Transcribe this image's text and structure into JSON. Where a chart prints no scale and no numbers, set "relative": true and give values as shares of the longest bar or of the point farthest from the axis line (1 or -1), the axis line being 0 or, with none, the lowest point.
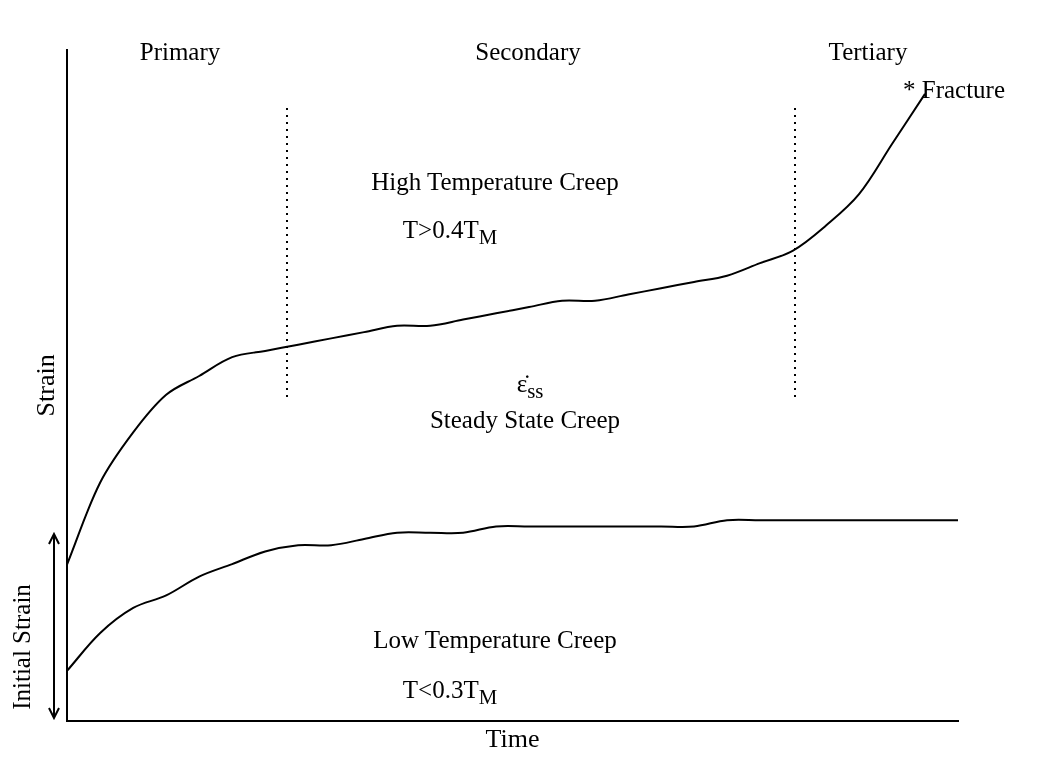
{
  "chart_data": {
    "type": "line",
    "relative": true,
    "xlabel": "Time",
    "ylabel": "Strain",
    "categories": [
      null,
      null,
      null,
      null,
      null,
      null,
      null,
      null,
      null,
      null,
      null,
      null,
      null,
      null,
      null,
      null,
      null,
      null,
      null,
      null,
      null,
      null,
      null,
      null,
      null,
      null,
      null,
      null
    ],
    "series": [
      {
        "color": "#000000",
        "values": [
          0.25,
          0.38,
          0.46,
          0.52,
          0.55,
          0.58,
          0.59,
          0.6,
          0.61,
          0.62,
          0.63,
          0.63,
          0.64,
          0.65,
          0.66,
          0.67,
          0.67,
          0.68,
          0.69,
          0.7,
          0.71,
          0.73,
          0.75,
          0.79,
          0.84,
          0.92,
          1,
          null
        ]
      },
      {
        "color": "#000000",
        "values": [
          0.08,
          0.14,
          0.18,
          0.2,
          0.23,
          0.25,
          0.27,
          0.28,
          0.28,
          0.29,
          0.3,
          0.3,
          0.3,
          0.31,
          0.31,
          0.31,
          0.31,
          0.31,
          0.31,
          0.31,
          0.32,
          0.32,
          0.32,
          0.32,
          0.32,
          0.32,
          0.32,
          0.32
        ]
      }
    ],
    "annotations": [
      "Primary",
      "Secondary",
      "Tertiary",
      "* Fracture",
      "High Temperature Creep",
      "T>0.4T$_{M}$",
      "ε̇$_{ss}$",
      "Steady State Creep",
      "Low Temperature Creep",
      "T<0.3T$_{M}$",
      "Initial Strain"
    ],
    "marker": "none",
    "line_style": "solid",
    "grid": false,
    "legend": false
  }
}
